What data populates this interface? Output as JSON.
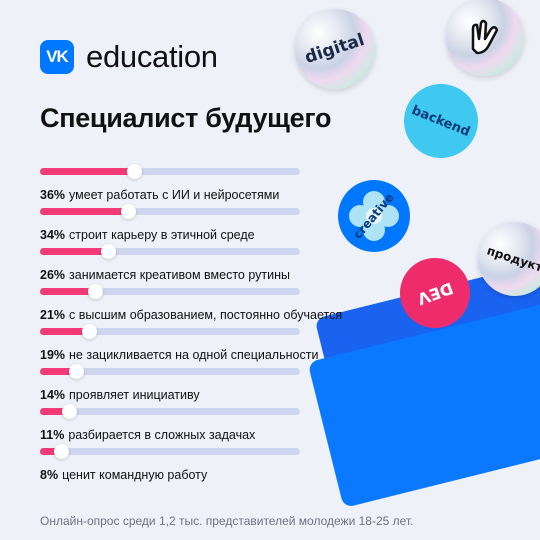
{
  "brand": {
    "logo_mark": "VK",
    "wordmark": "education",
    "color": "#0077ff"
  },
  "title": "Специалист будущего",
  "stickers": {
    "digital": "digital",
    "backend": "backend",
    "creative": "creative",
    "product": "продукт",
    "dev": "DEV"
  },
  "chart_data": {
    "type": "bar",
    "orientation": "horizontal",
    "unit": "%",
    "xlim": [
      0,
      100
    ],
    "colors": {
      "fill": "#f23a77",
      "track": "#cdd6ee"
    },
    "items": [
      {
        "value": 36,
        "value_label": "36%",
        "label": "умеет работать с ИИ и нейросетями"
      },
      {
        "value": 34,
        "value_label": "34%",
        "label": "строит карьеру в этичной среде"
      },
      {
        "value": 26,
        "value_label": "26%",
        "label": "занимается креативом вместо рутины"
      },
      {
        "value": 21,
        "value_label": "21%",
        "label": "с высшим образованием, постоянно обучается"
      },
      {
        "value": 19,
        "value_label": "19%",
        "label": "не зацикливается на одной специальности"
      },
      {
        "value": 14,
        "value_label": "14%",
        "label": "проявляет инициативу"
      },
      {
        "value": 11,
        "value_label": "11%",
        "label": "разбирается в сложных задачах"
      },
      {
        "value": 8,
        "value_label": "8%",
        "label": "ценит командную работу"
      }
    ]
  },
  "footnote": "Онлайн-опрос среди 1,2 тыс. представителей молодежи 18-25 лет."
}
